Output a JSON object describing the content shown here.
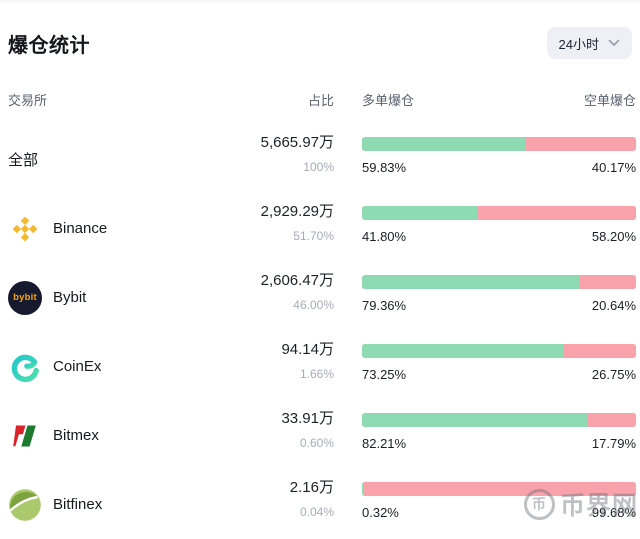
{
  "page": {
    "title": "爆仓统计",
    "period": "24小时"
  },
  "table": {
    "headers": {
      "exchange": "交易所",
      "share": "占比",
      "long": "多单爆仓",
      "short": "空单爆仓"
    },
    "rows": [
      {
        "name": "全部",
        "logo": "none",
        "amount": "5,665.97万",
        "share": "100%",
        "long_pct": "59.83%",
        "short_pct": "40.17%"
      },
      {
        "name": "Binance",
        "logo": "binance-logo",
        "amount": "2,929.29万",
        "share": "51.70%",
        "long_pct": "41.80%",
        "short_pct": "58.20%"
      },
      {
        "name": "Bybit",
        "logo": "bybit-logo",
        "amount": "2,606.47万",
        "share": "46.00%",
        "long_pct": "79.36%",
        "short_pct": "20.64%"
      },
      {
        "name": "CoinEx",
        "logo": "coinex-logo",
        "amount": "94.14万",
        "share": "1.66%",
        "long_pct": "73.25%",
        "short_pct": "26.75%"
      },
      {
        "name": "Bitmex",
        "logo": "bitmex-logo",
        "amount": "33.91万",
        "share": "0.60%",
        "long_pct": "82.21%",
        "short_pct": "17.79%"
      },
      {
        "name": "Bitfinex",
        "logo": "bitfinex-logo",
        "amount": "2.16万",
        "share": "0.04%",
        "long_pct": "0.32%",
        "short_pct": "99.68%"
      }
    ]
  },
  "watermark": {
    "text": "币界网",
    "icon": "coin-icon",
    "coin_glyph": "币"
  },
  "colors": {
    "long_green": "#8edbb3",
    "short_red": "#f9a2ab",
    "title_dark": "#15171c",
    "header_gray": "#5a6270",
    "muted_gray": "#a6acb6",
    "dropdown_bg": "#eef0f6",
    "binance_yellow": "#f3ba2f",
    "bybit_dark": "#17192e",
    "coinex_teal": "#3cd6b4",
    "bitmex_red": "#d8232a",
    "bitmex_green": "#1e7a2e",
    "bitfinex_dark_green": "#7da341",
    "bitfinex_light_green": "#a9c96c"
  },
  "chart_data": {
    "type": "bar",
    "subtype": "horizontal-stacked-percent",
    "title": "爆仓统计",
    "period": "24小时",
    "categories": [
      "全部",
      "Binance",
      "Bybit",
      "CoinEx",
      "Bitmex",
      "Bitfinex"
    ],
    "series": [
      {
        "name": "多单爆仓",
        "color": "#8edbb3",
        "values": [
          59.83,
          41.8,
          79.36,
          73.25,
          82.21,
          0.32
        ]
      },
      {
        "name": "空单爆仓",
        "color": "#f9a2ab",
        "values": [
          40.17,
          58.2,
          20.64,
          26.75,
          17.79,
          99.68
        ]
      }
    ],
    "amounts_label": "占比",
    "amounts": [
      "5,665.97万",
      "2,929.29万",
      "2,606.47万",
      "94.14万",
      "33.91万",
      "2.16万"
    ],
    "share_percent": [
      100,
      51.7,
      46.0,
      1.66,
      0.6,
      0.04
    ],
    "xlim": [
      0,
      100
    ],
    "legend_position": "column-headers",
    "grid": false
  }
}
